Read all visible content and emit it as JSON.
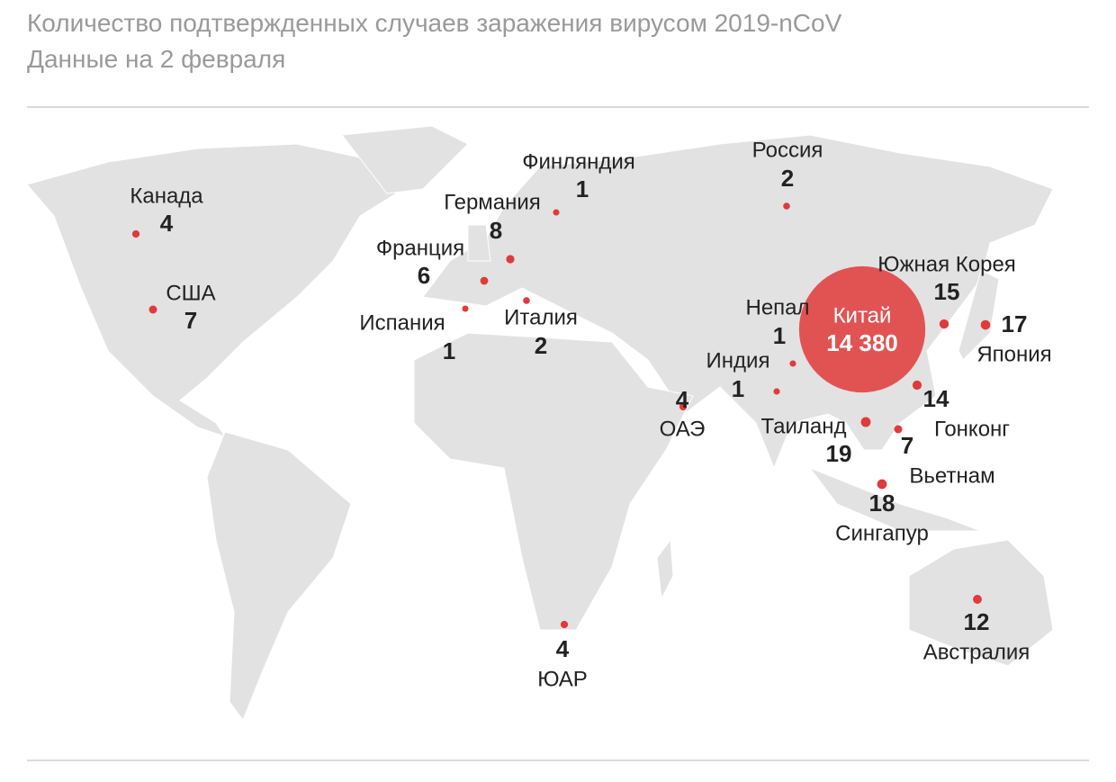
{
  "header": {
    "title": "Количество подтвержденных случаев заражения вирусом 2019-nCoV",
    "subtitle": "Данные на 2 февраля"
  },
  "map": {
    "color": "#e03a3a",
    "points": [
      {
        "name": "Канада",
        "value": 4
      },
      {
        "name": "США",
        "value": 7
      },
      {
        "name": "Финляндия",
        "value": 1
      },
      {
        "name": "Германия",
        "value": 8
      },
      {
        "name": "Франция",
        "value": 6
      },
      {
        "name": "Испания",
        "value": 1
      },
      {
        "name": "Италия",
        "value": 2
      },
      {
        "name": "Россия",
        "value": 2
      },
      {
        "name": "Южная Корея",
        "value": 15
      },
      {
        "name": "Япония",
        "value": 17
      },
      {
        "name": "Китай",
        "value": 14380,
        "value_label": "14 380"
      },
      {
        "name": "Непал",
        "value": 1
      },
      {
        "name": "Индия",
        "value": 1
      },
      {
        "name": "ОАЭ",
        "value": 4
      },
      {
        "name": "Таиланд",
        "value": 19
      },
      {
        "name": "Гонконг",
        "value": 14
      },
      {
        "name": "Вьетнам",
        "value": 7
      },
      {
        "name": "Сингапур",
        "value": 18
      },
      {
        "name": "Австралия",
        "value": 12
      },
      {
        "name": "ЮАР",
        "value": 4
      }
    ]
  }
}
